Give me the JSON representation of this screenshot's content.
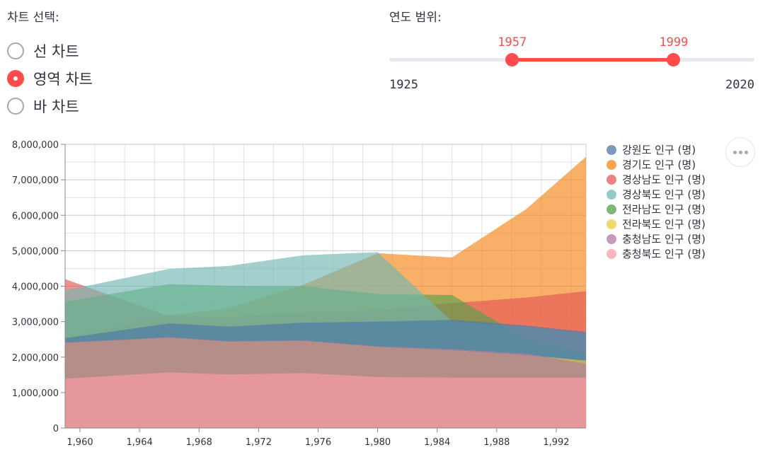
{
  "chart_select": {
    "label": "차트 선택:",
    "options": [
      {
        "label": "선 차트",
        "selected": false
      },
      {
        "label": "영역 차트",
        "selected": true
      },
      {
        "label": "바 차트",
        "selected": false
      }
    ]
  },
  "year_slider": {
    "label": "연도 범위:",
    "min": 1925,
    "max": 2020,
    "low": 1957,
    "high": 1999,
    "min_label": "1925",
    "max_label": "2020",
    "low_label": "1957",
    "high_label": "1999"
  },
  "colors": {
    "accent": "#ff4b4b",
    "series": [
      "#4c78a8",
      "#f58518",
      "#e45756",
      "#72b7b2",
      "#54a24b",
      "#eeca3b",
      "#b279a2",
      "#ff9da6"
    ]
  },
  "chart_data": {
    "type": "area",
    "stacked": false,
    "grid": true,
    "legend_position": "right",
    "xlim": [
      1959,
      1994
    ],
    "ylim": [
      0,
      8000000
    ],
    "x_ticks": [
      1960,
      1964,
      1968,
      1972,
      1976,
      1980,
      1984,
      1988,
      1992
    ],
    "x_tick_labels": [
      "1,960",
      "1,964",
      "1,968",
      "1,972",
      "1,976",
      "1,980",
      "1,984",
      "1,988",
      "1,992"
    ],
    "y_ticks": [
      0,
      1000000,
      2000000,
      3000000,
      4000000,
      5000000,
      6000000,
      7000000,
      8000000
    ],
    "y_tick_labels": [
      "0",
      "1,000,000",
      "2,000,000",
      "3,000,000",
      "4,000,000",
      "5,000,000",
      "6,000,000",
      "7,000,000",
      "8,000,000"
    ],
    "x": [
      1959,
      1966,
      1970,
      1975,
      1980,
      1985,
      1990,
      1994
    ],
    "series": [
      {
        "name": "강원도 인구 (명)",
        "values": [
          2530000,
          2950000,
          2860000,
          2970000,
          3000000,
          3050000,
          2890000,
          2710000
        ]
      },
      {
        "name": "경기도 인구 (명)",
        "values": [
          2550000,
          3180000,
          3380000,
          4040000,
          4930000,
          4810000,
          6180000,
          7650000
        ]
      },
      {
        "name": "경상남도 인구 (명)",
        "values": [
          4200000,
          3150000,
          3140000,
          3280000,
          3330000,
          3520000,
          3680000,
          3860000
        ]
      },
      {
        "name": "경상북도 인구 (명)",
        "values": [
          3880000,
          4490000,
          4570000,
          4870000,
          4960000,
          3010000,
          2860000,
          2680000
        ]
      },
      {
        "name": "전라남도 인구 (명)",
        "values": [
          3560000,
          4060000,
          4010000,
          4000000,
          3780000,
          3750000,
          2510000,
          2080000
        ]
      },
      {
        "name": "전라북도 인구 (명)",
        "values": [
          2400000,
          2550000,
          2440000,
          2460000,
          2290000,
          2200000,
          2060000,
          1900000
        ]
      },
      {
        "name": "충청남도 인구 (명)",
        "values": [
          2420000,
          2560000,
          2450000,
          2480000,
          2310000,
          2230000,
          2100000,
          1810000
        ]
      },
      {
        "name": "충청북도 인구 (명)",
        "values": [
          1390000,
          1570000,
          1510000,
          1550000,
          1440000,
          1420000,
          1420000,
          1420000
        ]
      }
    ],
    "render_order": [
      1,
      2,
      4,
      3,
      0,
      5,
      6,
      7
    ]
  }
}
